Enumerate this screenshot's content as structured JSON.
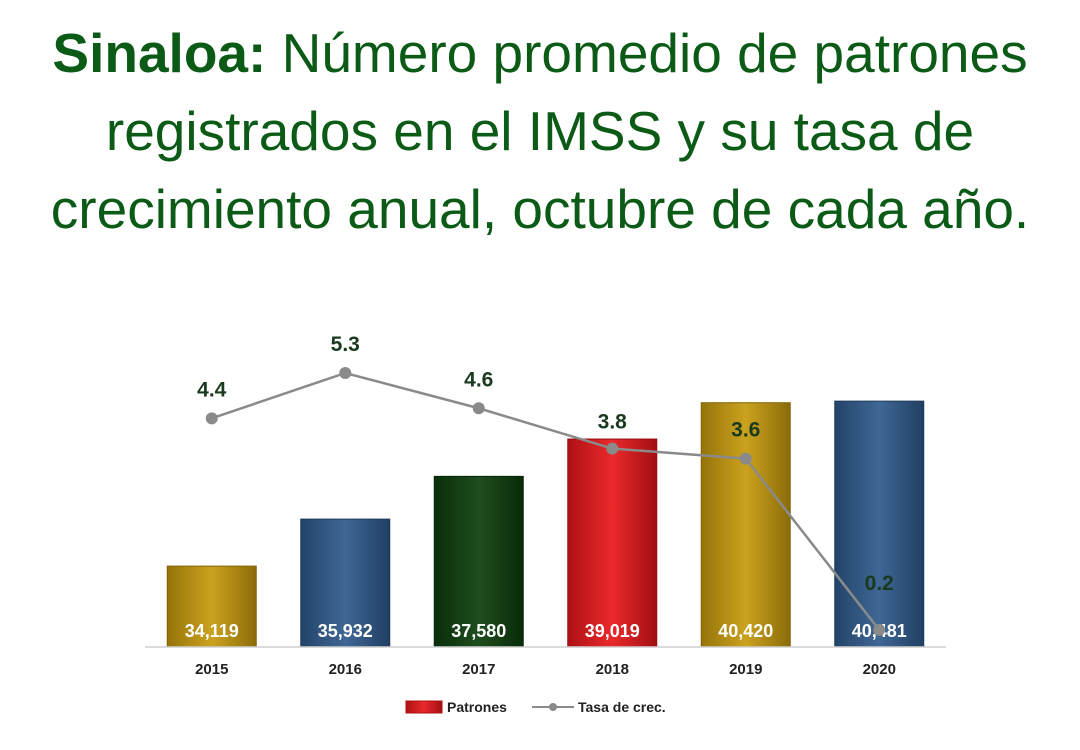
{
  "title": {
    "bold": "Sinaloa:",
    "rest": " Número promedio de patrones registrados en el IMSS y su tasa de crecimiento anual, octubre de cada año."
  },
  "colors": {
    "title": "#0b5a16",
    "gold": "#c79a0c",
    "blue": "#2e5a8c",
    "green": "#0c3d0c",
    "red": "#e8161a",
    "line": "#8a8a8a"
  },
  "chart_data": {
    "type": "bar",
    "categories": [
      "2015",
      "2016",
      "2017",
      "2018",
      "2019",
      "2020"
    ],
    "series": [
      {
        "name": "Patrones",
        "type": "bar",
        "values": [
          34119,
          35932,
          37580,
          39019,
          40420,
          40481
        ],
        "labels": [
          "34,119",
          "35,932",
          "37,580",
          "39,019",
          "40,420",
          "40,481"
        ],
        "colors": [
          "gold",
          "blue",
          "green",
          "red",
          "gold",
          "blue"
        ]
      },
      {
        "name": "Tasa de crec.",
        "type": "line",
        "values": [
          4.4,
          5.3,
          4.6,
          3.8,
          3.6,
          0.2
        ],
        "labels": [
          "4.4",
          "5.3",
          "4.6",
          "3.8",
          "3.6",
          "0.2"
        ]
      }
    ],
    "legend": [
      "Patrones",
      "Tasa de crec."
    ],
    "legend_position": "bottom",
    "grid": false
  }
}
